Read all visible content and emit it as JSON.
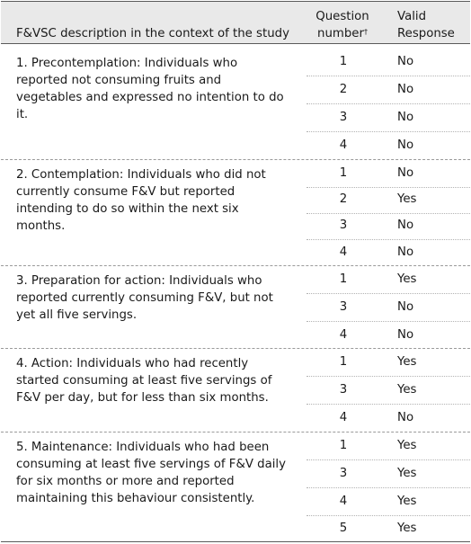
{
  "headers": {
    "description": "F&VSC description in the context of the study",
    "question_line1": "Question",
    "question_line2": "number",
    "question_sup": "†",
    "valid_line1": "Valid",
    "valid_line2": "Response"
  },
  "stages": [
    {
      "description": "1. Precontemplation: Individuals who reported not consuming fruits and vegetables and expressed no intention to do it.",
      "rows": [
        {
          "question": "1",
          "response": "No"
        },
        {
          "question": "2",
          "response": "No"
        },
        {
          "question": "3",
          "response": "No"
        },
        {
          "question": "4",
          "response": "No"
        }
      ]
    },
    {
      "description": "2. Contemplation: Individuals who did not currently consume F&V but reported intending to do so within the next six months.",
      "rows": [
        {
          "question": "1",
          "response": "No"
        },
        {
          "question": "2",
          "response": "Yes"
        },
        {
          "question": "3",
          "response": "No"
        },
        {
          "question": "4",
          "response": "No"
        }
      ]
    },
    {
      "description": "3. Preparation for action: Individuals who reported currently consuming F&V, but not yet all five servings.",
      "rows": [
        {
          "question": "1",
          "response": "Yes"
        },
        {
          "question": "3",
          "response": "No"
        },
        {
          "question": "4",
          "response": "No"
        }
      ]
    },
    {
      "description": "4. Action: Individuals who had recently started consuming at least five servings of F&V per day, but for less than six months.",
      "rows": [
        {
          "question": "1",
          "response": "Yes"
        },
        {
          "question": "3",
          "response": "Yes"
        },
        {
          "question": "4",
          "response": "No"
        }
      ]
    },
    {
      "description": "5. Maintenance: Individuals who had been consuming at least five servings of F&V daily for six months or more and reported maintaining this behaviour consistently.",
      "rows": [
        {
          "question": "1",
          "response": "Yes"
        },
        {
          "question": "3",
          "response": "Yes"
        },
        {
          "question": "4",
          "response": "Yes"
        },
        {
          "question": "5",
          "response": "Yes"
        }
      ]
    }
  ]
}
